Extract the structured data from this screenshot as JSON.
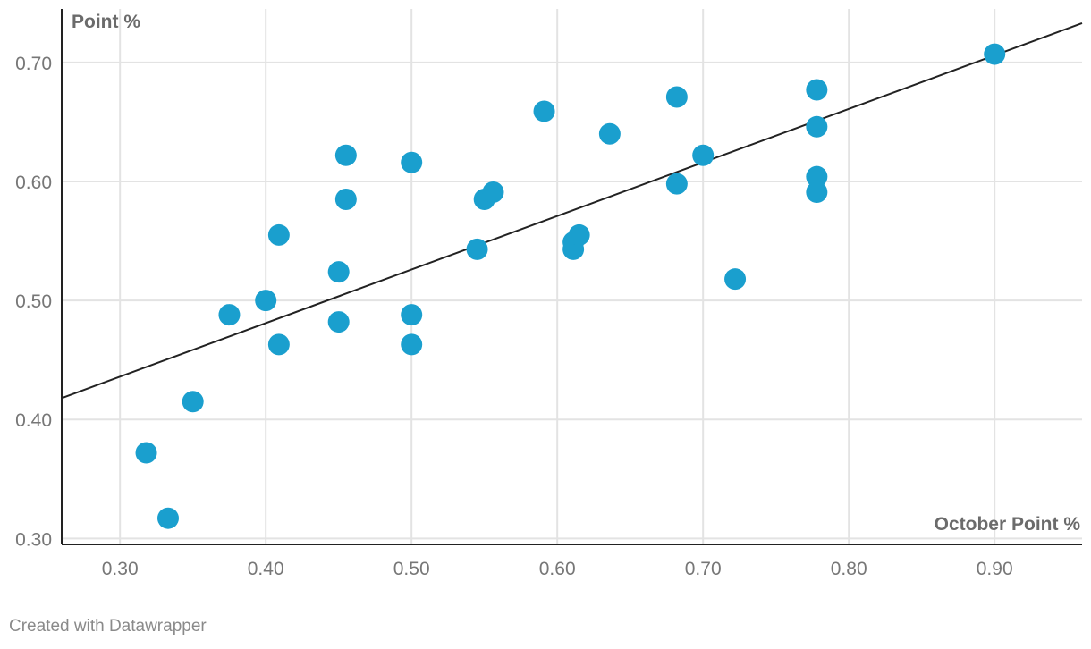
{
  "chart_data": {
    "type": "scatter",
    "xlabel": "October Point %",
    "ylabel": "Point %",
    "xlim": [
      0.26,
      0.96
    ],
    "ylim": [
      0.295,
      0.745
    ],
    "xticks": [
      "0.30",
      "0.40",
      "0.50",
      "0.60",
      "0.70",
      "0.80",
      "0.90"
    ],
    "yticks": [
      "0.30",
      "0.40",
      "0.50",
      "0.60",
      "0.70"
    ],
    "grid": true,
    "point_color": "#1a9fce",
    "trend_color": "#222222",
    "points": [
      {
        "x": 0.318,
        "y": 0.372
      },
      {
        "x": 0.333,
        "y": 0.317
      },
      {
        "x": 0.35,
        "y": 0.415
      },
      {
        "x": 0.375,
        "y": 0.488
      },
      {
        "x": 0.4,
        "y": 0.5
      },
      {
        "x": 0.409,
        "y": 0.555
      },
      {
        "x": 0.409,
        "y": 0.463
      },
      {
        "x": 0.45,
        "y": 0.524
      },
      {
        "x": 0.45,
        "y": 0.482
      },
      {
        "x": 0.455,
        "y": 0.622
      },
      {
        "x": 0.455,
        "y": 0.585
      },
      {
        "x": 0.5,
        "y": 0.616
      },
      {
        "x": 0.5,
        "y": 0.488
      },
      {
        "x": 0.5,
        "y": 0.463
      },
      {
        "x": 0.545,
        "y": 0.543
      },
      {
        "x": 0.55,
        "y": 0.585
      },
      {
        "x": 0.556,
        "y": 0.591
      },
      {
        "x": 0.591,
        "y": 0.659
      },
      {
        "x": 0.611,
        "y": 0.549
      },
      {
        "x": 0.611,
        "y": 0.543
      },
      {
        "x": 0.615,
        "y": 0.555
      },
      {
        "x": 0.636,
        "y": 0.64
      },
      {
        "x": 0.682,
        "y": 0.671
      },
      {
        "x": 0.682,
        "y": 0.598
      },
      {
        "x": 0.7,
        "y": 0.622
      },
      {
        "x": 0.722,
        "y": 0.518
      },
      {
        "x": 0.778,
        "y": 0.677
      },
      {
        "x": 0.778,
        "y": 0.646
      },
      {
        "x": 0.778,
        "y": 0.604
      },
      {
        "x": 0.778,
        "y": 0.591
      },
      {
        "x": 0.9,
        "y": 0.707
      }
    ],
    "trendline": {
      "x1": 0.26,
      "y1": 0.418,
      "x2": 0.96,
      "y2": 0.733
    }
  },
  "footer": {
    "credit": "Created with Datawrapper"
  }
}
